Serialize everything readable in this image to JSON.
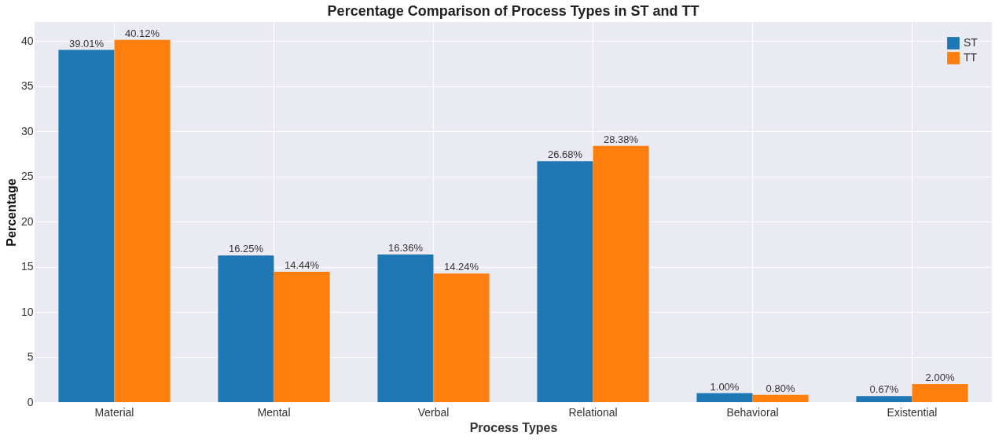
{
  "chart_data": {
    "type": "bar",
    "title": "Percentage Comparison of Process Types in ST and TT",
    "xlabel": "Process Types",
    "ylabel": "Percentage",
    "categories": [
      "Material",
      "Mental",
      "Verbal",
      "Relational",
      "Behavioral",
      "Existential"
    ],
    "series": [
      {
        "name": "ST",
        "color": "#1f77b4",
        "values": [
          39.01,
          16.25,
          16.36,
          26.68,
          1.0,
          0.67
        ],
        "value_labels": [
          "39.01%",
          "16.25%",
          "16.36%",
          "26.68%",
          "1.00%",
          "0.67%"
        ]
      },
      {
        "name": "TT",
        "color": "#ff7f0e",
        "values": [
          40.12,
          14.44,
          14.24,
          28.38,
          0.8,
          2.0
        ],
        "value_labels": [
          "40.12%",
          "14.44%",
          "14.24%",
          "28.38%",
          "0.80%",
          "2.00%"
        ]
      }
    ],
    "ylim": [
      0,
      42.1
    ],
    "yticks": [
      0,
      5,
      10,
      15,
      20,
      25,
      30,
      35,
      40
    ],
    "grid": true,
    "legend": "top right"
  }
}
